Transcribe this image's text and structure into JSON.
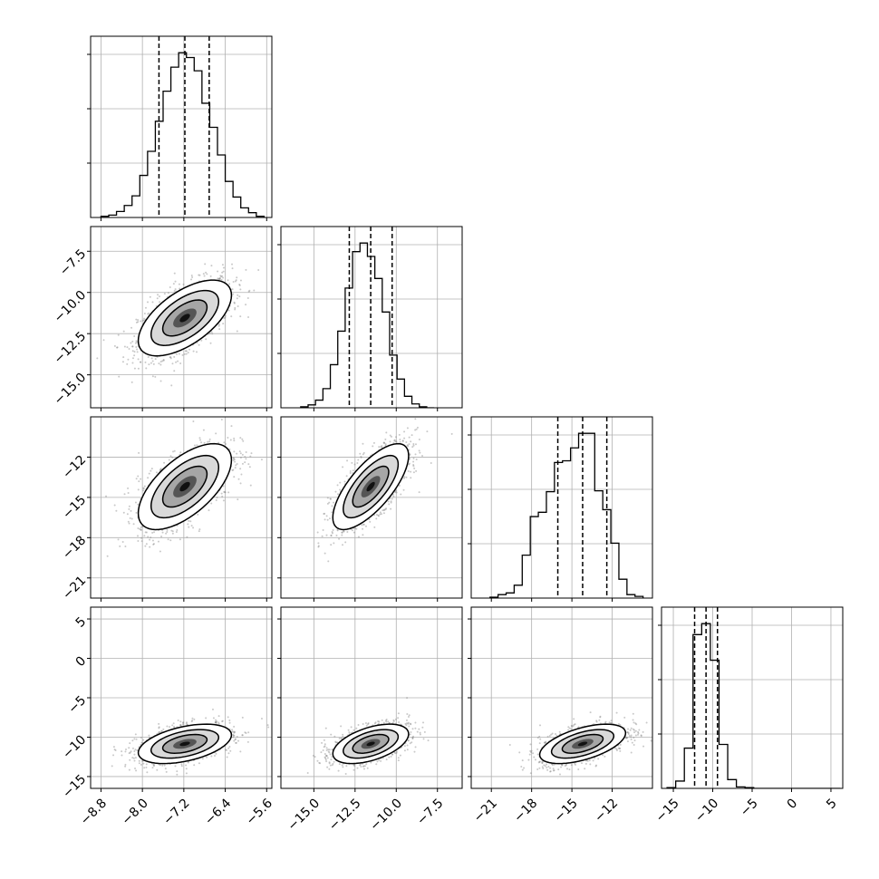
{
  "chart_data": {
    "type": "corner",
    "n_params": 4,
    "grid": true,
    "colors": {
      "hist": "#000000",
      "scatter": "#888888",
      "grid": "#b0b0b0",
      "quantile_line": "#000000"
    },
    "quantile_style": "dashed",
    "axes": [
      {
        "range": [
          -9.0,
          -5.5
        ],
        "ticks": [
          -8.8,
          -8.0,
          -7.2,
          -6.4,
          -5.6
        ],
        "tick_labels": [
          "−8.8",
          "−8.0",
          "−7.2",
          "−6.4",
          "−5.6"
        ]
      },
      {
        "range": [
          -17.0,
          -6.0
        ],
        "ticks": [
          -15.0,
          -12.5,
          -10.0,
          -7.5
        ],
        "tick_labels": [
          "−15.0",
          "−12.5",
          "−10.0",
          "−7.5"
        ]
      },
      {
        "range": [
          -22.5,
          -9.0
        ],
        "ticks": [
          -21,
          -18,
          -15,
          -12
        ],
        "tick_labels": [
          "−21",
          "−18",
          "−15",
          "−12"
        ]
      },
      {
        "range": [
          -16.5,
          6.5
        ],
        "ticks": [
          -15,
          -10,
          -5,
          0,
          5
        ],
        "tick_labels": [
          "−15",
          "−10",
          "−5",
          "0",
          "5"
        ]
      }
    ],
    "diagonal": [
      {
        "quantiles": [
          -7.68,
          -7.18,
          -6.71
        ],
        "bin_edges": [
          -8.8,
          -8.65,
          -8.5,
          -8.35,
          -8.2,
          -8.05,
          -7.9,
          -7.75,
          -7.6,
          -7.45,
          -7.3,
          -7.15,
          -7.0,
          -6.85,
          -6.7,
          -6.55,
          -6.4,
          -6.25,
          -6.1,
          -5.95,
          -5.8,
          -5.65
        ],
        "counts": [
          1,
          2,
          5,
          10,
          18,
          35,
          55,
          80,
          105,
          125,
          137,
          133,
          122,
          95,
          75,
          52,
          30,
          17,
          8,
          4,
          1
        ]
      },
      {
        "quantiles": [
          -12.85,
          -11.55,
          -10.25
        ],
        "bin_edges": [
          -15.8,
          -15.35,
          -14.9,
          -14.45,
          -14.0,
          -13.55,
          -13.1,
          -12.65,
          -12.2,
          -11.75,
          -11.3,
          -10.85,
          -10.4,
          -9.95,
          -9.5,
          -9.05,
          -8.6,
          -8.15,
          -7.7
        ],
        "counts": [
          1,
          3,
          8,
          20,
          45,
          80,
          125,
          163,
          172,
          158,
          135,
          100,
          55,
          30,
          12,
          4,
          1,
          0
        ]
      },
      {
        "quantiles": [
          -16.05,
          -14.2,
          -12.4
        ],
        "bin_edges": [
          -21.1,
          -20.5,
          -19.9,
          -19.3,
          -18.7,
          -18.1,
          -17.5,
          -16.9,
          -16.3,
          -15.7,
          -15.1,
          -14.5,
          -13.9,
          -13.3,
          -12.7,
          -12.1,
          -11.5,
          -10.9,
          -10.3,
          -9.7
        ],
        "counts": [
          1,
          4,
          6,
          15,
          50,
          95,
          100,
          124,
          158,
          160,
          175,
          192,
          192,
          125,
          103,
          64,
          22,
          4,
          2
        ]
      },
      {
        "quantiles": [
          -12.3,
          -10.85,
          -9.4
        ],
        "bin_edges": [
          -15.8,
          -14.7,
          -13.6,
          -12.5,
          -11.4,
          -10.3,
          -9.2,
          -8.1,
          -7.0,
          -5.9,
          -4.8,
          -3.7,
          -2.6,
          -1.5,
          -0.4,
          0.7,
          1.8,
          2.9,
          4.0,
          5.1,
          6.2
        ],
        "counts": [
          1,
          10,
          55,
          210,
          225,
          175,
          60,
          12,
          2,
          1,
          0,
          0,
          0,
          0,
          0,
          0,
          0,
          0,
          0,
          0
        ]
      }
    ],
    "means": [
      -7.18,
      -11.55,
      -14.2,
      -10.85
    ],
    "sigmas": [
      0.45,
      1.15,
      1.6,
      1.25
    ],
    "correlations": {
      "1-0": 0.6,
      "2-0": 0.62,
      "2-1": 0.72,
      "3-0": 0.45,
      "3-1": 0.5,
      "3-2": 0.55
    }
  }
}
